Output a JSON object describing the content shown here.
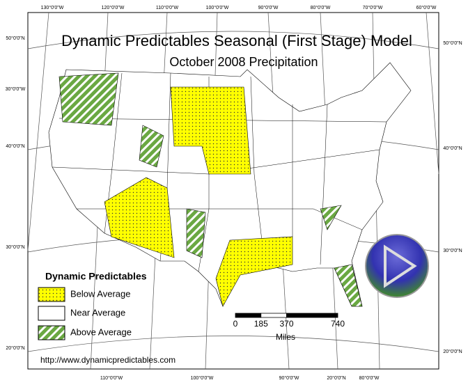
{
  "title": "Dynamic Predictables Seasonal (First Stage) Model",
  "subtitle": "October 2008 Precipitation",
  "legend": {
    "title": "Dynamic Predictables",
    "items": [
      {
        "label": "Below Average"
      },
      {
        "label": "Near Average"
      },
      {
        "label": "Above Average"
      }
    ]
  },
  "scale": {
    "ticks": [
      0,
      185,
      370,
      740
    ],
    "unit": "Miles"
  },
  "url": "http://www.dynamicpredictables.com",
  "graticule": {
    "top": [
      "130°0'0\"W",
      "120°0'0\"W",
      "110°0'0\"W",
      "100°0'0\"W",
      "90°0'0\"W",
      "80°0'0\"W",
      "70°0'0\"W",
      "60°0'0\"W"
    ],
    "bottom": [
      "110°0'0\"W",
      "100°0'0\"W",
      "90°0'0\"W",
      "20°0'0\"N",
      "80°0'0\"W"
    ],
    "left": [
      "50°0'0\"N",
      "30°0'0\"W",
      "40°0'0\"N",
      "30°0'0\"N",
      "20°0'0\"N"
    ],
    "right": [
      "50°0'0\"N",
      "40°0'0\"N",
      "30°0'0\"N",
      "20°0'0\"N"
    ]
  }
}
